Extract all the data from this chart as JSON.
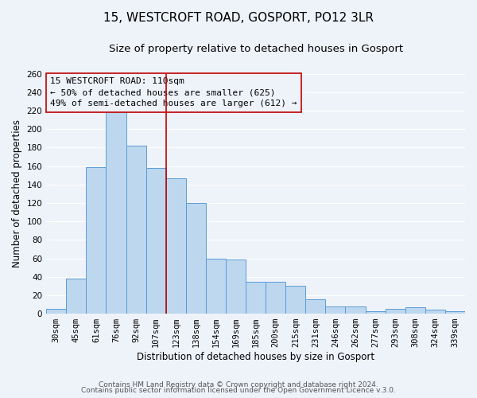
{
  "title": "15, WESTCROFT ROAD, GOSPORT, PO12 3LR",
  "subtitle": "Size of property relative to detached houses in Gosport",
  "xlabel": "Distribution of detached houses by size in Gosport",
  "ylabel": "Number of detached properties",
  "bar_labels": [
    "30sqm",
    "45sqm",
    "61sqm",
    "76sqm",
    "92sqm",
    "107sqm",
    "123sqm",
    "138sqm",
    "154sqm",
    "169sqm",
    "185sqm",
    "200sqm",
    "215sqm",
    "231sqm",
    "246sqm",
    "262sqm",
    "277sqm",
    "293sqm",
    "308sqm",
    "324sqm",
    "339sqm"
  ],
  "bar_heights": [
    5,
    38,
    159,
    219,
    182,
    158,
    147,
    120,
    60,
    59,
    35,
    35,
    30,
    16,
    8,
    8,
    3,
    5,
    7,
    4,
    3
  ],
  "bar_color": "#bdd7ee",
  "bar_edge_color": "#5b9bd5",
  "vline_color": "#c00000",
  "vline_pos": 5.5,
  "annotation_title": "15 WESTCROFT ROAD: 110sqm",
  "annotation_line1": "← 50% of detached houses are smaller (625)",
  "annotation_line2": "49% of semi-detached houses are larger (612) →",
  "annotation_box_edge": "#c00000",
  "ylim": [
    0,
    260
  ],
  "yticks": [
    0,
    20,
    40,
    60,
    80,
    100,
    120,
    140,
    160,
    180,
    200,
    220,
    240,
    260
  ],
  "footer_line1": "Contains HM Land Registry data © Crown copyright and database right 2024.",
  "footer_line2": "Contains public sector information licensed under the Open Government Licence v.3.0.",
  "bg_color": "#eef2f9",
  "grid_color": "#ffffff",
  "title_fontsize": 11,
  "subtitle_fontsize": 9.5,
  "axis_label_fontsize": 8.5,
  "tick_fontsize": 7.5,
  "annotation_fontsize": 8,
  "footer_fontsize": 6.5
}
